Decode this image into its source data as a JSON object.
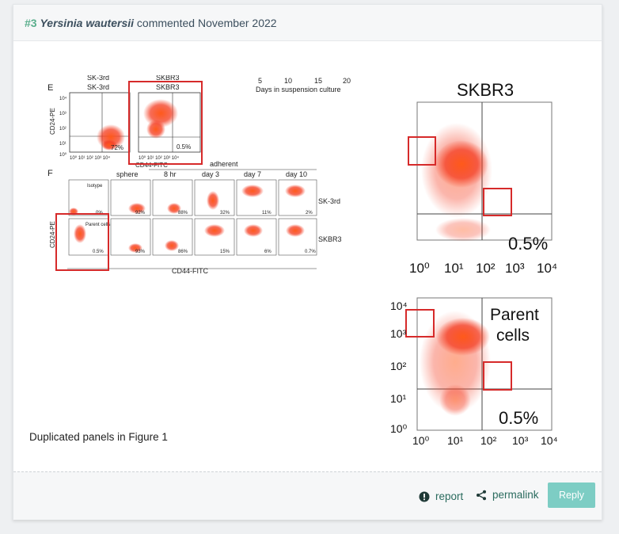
{
  "comment": {
    "number": "#3",
    "author": "Yersinia wautersii",
    "verb": "commented",
    "date": "November 2022",
    "caption": "Duplicated panels in Figure 1"
  },
  "figure": {
    "panel_e_letter": "E",
    "panel_f_letter": "F",
    "e_labels": {
      "sk3rd_top": "SK-3rd",
      "sk3rd": "SK-3rd",
      "skbr3_top": "SKBR3",
      "skbr3": "SKBR3",
      "pct_a": "72%",
      "pct_b": "0.5%",
      "xaxis": "CD44-FITC",
      "yaxis": "CD24-PE",
      "days_axis": "Days in suspension culture",
      "days_ticks": [
        "5",
        "10",
        "15",
        "20"
      ]
    },
    "f_labels": {
      "yaxis": "CD24-PE",
      "xaxis": "CD44-FITC",
      "adherent": "adherent",
      "columns": [
        "sphere",
        "8 hr",
        "day 3",
        "day 7",
        "day 10"
      ],
      "row1": "SK-3rd",
      "row2": "SKBR3",
      "isotype": "Isotype",
      "parent_cells": "Parent cells",
      "row1_pcts": [
        "0%",
        "92%",
        "88%",
        "32%",
        "11%",
        "2%"
      ],
      "row2_pcts": [
        "0.5%",
        "93%",
        "86%",
        "15%",
        "6%",
        "0.7%"
      ]
    },
    "zoom_top": {
      "title": "SKBR3",
      "pct": "0.5%",
      "ticks": [
        "10⁰",
        "10¹",
        "10²",
        "10³",
        "10⁴"
      ]
    },
    "zoom_bottom": {
      "label_line1": "Parent",
      "label_line2": "cells",
      "pct": "0.5%",
      "yticks": [
        "10⁴",
        "10³",
        "10²",
        "10¹",
        "10⁰"
      ],
      "xticks": [
        "10⁰",
        "10¹",
        "10²",
        "10³",
        "10⁴"
      ]
    },
    "highlight_color": "#d62a2a",
    "dot_color": "#f03a1f"
  },
  "footer": {
    "report_label": "report",
    "permalink_label": "permalink",
    "reply_label": "Reply"
  }
}
